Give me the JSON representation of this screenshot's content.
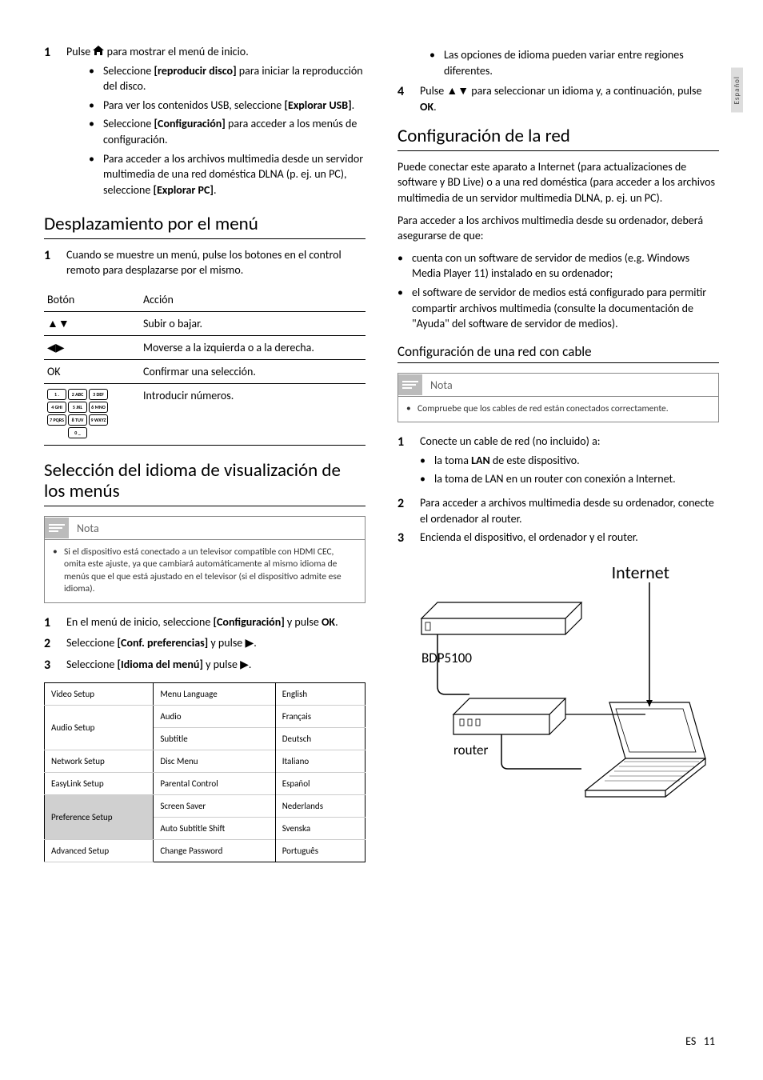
{
  "side_tab": "Español",
  "footer": {
    "lang": "ES",
    "page": "11"
  },
  "left": {
    "step1": {
      "num": "1",
      "text_before": "Pulse ",
      "text_after": " para mostrar el menú de inicio.",
      "bullets": [
        {
          "pre": "Seleccione ",
          "bold": "[reproducir disco]",
          "post": " para iniciar la reproducción del disco."
        },
        {
          "pre": "Para ver los contenidos USB, seleccione ",
          "bold": "[Explorar USB]",
          "post": "."
        },
        {
          "pre": "Seleccione ",
          "bold": "[Configuración]",
          "post": " para acceder a los menús de configuración."
        },
        {
          "pre": "Para acceder a los archivos multimedia desde un servidor multimedia de una red doméstica DLNA (p. ej. un PC), seleccione ",
          "bold": "[Explorar PC]",
          "post": "."
        }
      ]
    },
    "h2_nav": "Desplazamiento por el menú",
    "nav_step": {
      "num": "1",
      "text": "Cuando se muestre un menú, pulse los botones en el control remoto para desplazarse por el mismo."
    },
    "table_headers": {
      "btn": "Botón",
      "action": "Acción"
    },
    "table_rows": [
      {
        "btn_type": "updown",
        "action": "Subir o bajar."
      },
      {
        "btn_type": "leftright",
        "action": "Moverse a la izquierda o a la derecha."
      },
      {
        "btn_type": "ok",
        "btn_text": "OK",
        "action": "Confirmar una selección."
      },
      {
        "btn_type": "keypad",
        "action": "Introducir números."
      }
    ],
    "keypad_labels": [
      [
        "1 .",
        "2 ABC",
        "3 DEF"
      ],
      [
        "4 GHI",
        "5 JKL",
        "6 MNO"
      ],
      [
        "7 PQRS",
        "8 TUV",
        "9 WXYZ"
      ],
      [
        "0 _"
      ]
    ],
    "h2_lang": "Selección del idioma de visualización de los menús",
    "note_label": "Nota",
    "note_text": "Si el dispositivo está conectado a un televisor compatible con HDMI CEC, omita este ajuste, ya que cambiará automáticamente al mismo idioma de menús que el que está ajustado en el televisor (si el dispositivo admite ese idioma).",
    "lang_steps": [
      {
        "num": "1",
        "pre": "En el menú de inicio, seleccione ",
        "bold": "[Configuración]",
        "mid": " y pulse ",
        "bold2": "OK",
        "post": "."
      },
      {
        "num": "2",
        "pre": "Seleccione ",
        "bold": "[Conf. preferencias]",
        "mid": " y pulse ",
        "arrow": "▶",
        "post": "."
      },
      {
        "num": "3",
        "pre": "Seleccione ",
        "bold": "[Idioma del menú]",
        "mid": " y pulse ",
        "arrow": "▶",
        "post": "."
      }
    ],
    "menu_ui": {
      "left_col": [
        "Video Setup",
        "Audio Setup",
        "Network Setup",
        "EasyLink Setup",
        "Preference Setup",
        "Advanced Setup"
      ],
      "mid_col": [
        "Menu Language",
        "Audio",
        "Subtitle",
        "Disc Menu",
        "Parental Control",
        "Screen Saver",
        "Auto Subtitle Shift",
        "Change Password"
      ],
      "right_col": [
        "English",
        "Français",
        "Deutsch",
        "Italiano",
        "Español",
        "Nederlands",
        "Svenska",
        "Português"
      ],
      "highlight_index": 4
    }
  },
  "right": {
    "top_bullets": [
      "Las opciones de idioma pueden variar entre regiones diferentes."
    ],
    "step4": {
      "num": "4",
      "pre": "Pulse ",
      "sym": "▲▼",
      "mid": " para seleccionar un idioma y, a continuación, pulse ",
      "bold": "OK",
      "post": "."
    },
    "h2_net": "Configuración de la red",
    "net_intro": "Puede conectar este aparato a Internet (para actualizaciones de software y BD Live) o a una red doméstica (para acceder a los archivos multimedia de un servidor multimedia DLNA, p. ej. un PC).",
    "net_access": "Para acceder a los archivos multimedia desde su ordenador, deberá asegurarse de que:",
    "net_bullets": [
      "cuenta con un software de servidor de medios (e.g. Windows Media Player 11) instalado en su ordenador;",
      "el software de servidor de medios está configurado para permitir compartir archivos multimedia (consulte la documentación de \"Ayuda\" del software de servidor de medios)."
    ],
    "h3_wired": "Configuración de una red con cable",
    "note_label": "Nota",
    "note_text": "Compruebe que los cables de red están conectados correctamente.",
    "wired_steps": [
      {
        "num": "1",
        "text": "Conecte un cable de red (no incluido) a:",
        "sub": [
          {
            "pre": "la toma ",
            "bold": "LAN",
            "post": " de este dispositivo."
          },
          {
            "pre": "la toma de LAN en un router con conexión a Internet.",
            "bold": "",
            "post": ""
          }
        ]
      },
      {
        "num": "2",
        "text": "Para acceder a archivos multimedia desde su ordenador, conecte el ordenador al router."
      },
      {
        "num": "3",
        "text": "Encienda el dispositivo, el ordenador y el router."
      }
    ],
    "diagram": {
      "internet": "Internet",
      "device": "BDP5100",
      "router": "router"
    }
  }
}
